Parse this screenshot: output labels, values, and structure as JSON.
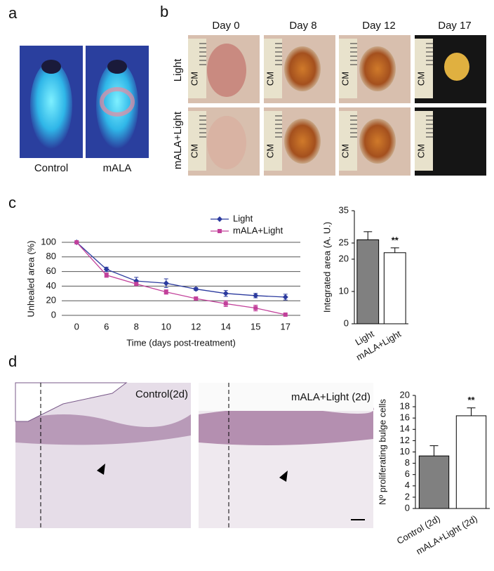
{
  "panel_labels": [
    "a",
    "b",
    "c",
    "d"
  ],
  "panel_a": {
    "captions": [
      "Control",
      "mALA"
    ]
  },
  "panel_b": {
    "days": [
      "Day 0",
      "Day 8",
      "Day 12",
      "Day 17"
    ],
    "rows": [
      "Light",
      "mALA+Light"
    ],
    "ruler_label": "CM"
  },
  "panel_d": {
    "captions": [
      "Control(2d)",
      "mALA+Light (2d)"
    ]
  },
  "chart_data": [
    {
      "type": "line",
      "y_label": "Unhealed area (%)",
      "x_label": "Time (days post-treatment)",
      "categories": [
        "0",
        "6",
        "8",
        "10",
        "12",
        "14",
        "15",
        "17"
      ],
      "series": [
        {
          "name": "Light",
          "color": "#2b3a9e",
          "marker": "diamond",
          "values": [
            100,
            63,
            47,
            44,
            36,
            30,
            27,
            25
          ],
          "errors": [
            0,
            3,
            5,
            6,
            2,
            4,
            3,
            4
          ]
        },
        {
          "name": "mALA+Light",
          "color": "#c2409a",
          "marker": "square",
          "values": [
            100,
            55,
            43,
            32,
            23,
            16,
            10,
            1
          ],
          "errors": [
            0,
            3,
            2,
            3,
            2,
            4,
            4,
            1
          ]
        }
      ],
      "ylim": [
        0,
        100
      ],
      "yticks": [
        0,
        20,
        40,
        60,
        80,
        100
      ],
      "grid": true
    },
    {
      "type": "bar",
      "y_label": "Integrated area (A. U.)",
      "categories": [
        "Light",
        "mALA+Light"
      ],
      "values": [
        26,
        22
      ],
      "errors": [
        2.5,
        1.5
      ],
      "colors": [
        "#808080",
        "#ffffff"
      ],
      "ylim": [
        0,
        35
      ],
      "yticks": [
        0,
        10,
        20,
        25,
        35
      ],
      "annotations": [
        "**"
      ]
    },
    {
      "type": "bar",
      "y_label": "Nº proliferating bulge cells",
      "categories": [
        "Control (2d)",
        "mALA+Light (2d)"
      ],
      "values": [
        9.3,
        16.4
      ],
      "errors": [
        1.8,
        1.4
      ],
      "colors": [
        "#808080",
        "#ffffff"
      ],
      "ylim": [
        0,
        20
      ],
      "yticks": [
        0,
        2,
        4,
        6,
        8,
        10,
        12,
        14,
        16,
        18,
        20
      ],
      "annotations": [
        "**"
      ]
    }
  ]
}
